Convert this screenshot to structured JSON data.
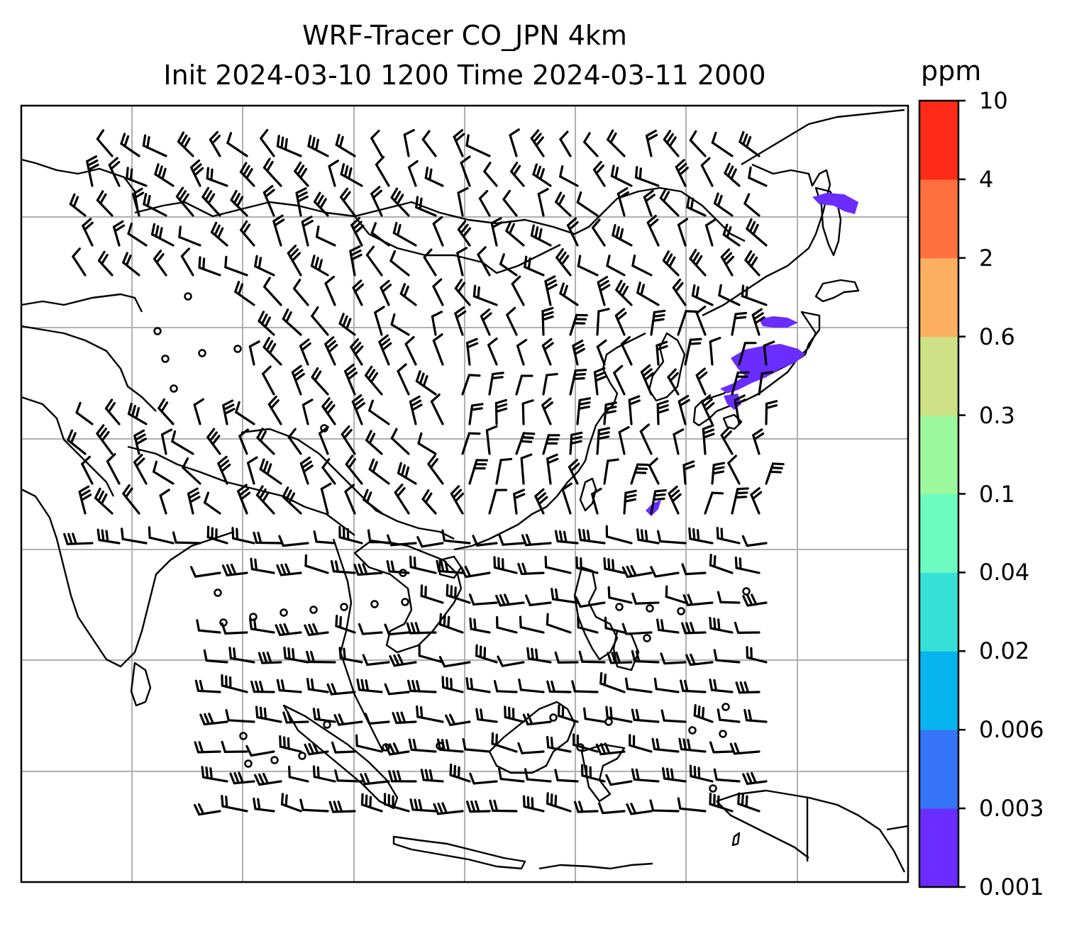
{
  "title_line1": "WRF-Tracer CO_JPN 4km",
  "title_line2": "Init 2024-03-10 1200 Time 2024-03-11 2000",
  "colorbar": {
    "unit": "ppm",
    "levels": [
      {
        "label": "0.001",
        "color": "#6a2cff"
      },
      {
        "label": "0.003",
        "color": "#3574f6"
      },
      {
        "label": "0.006",
        "color": "#08b4ee"
      },
      {
        "label": "0.02",
        "color": "#36e0d6"
      },
      {
        "label": "0.04",
        "color": "#6cfcbf"
      },
      {
        "label": "0.1",
        "color": "#9cf89c"
      },
      {
        "label": "0.3",
        "color": "#cfe186"
      },
      {
        "label": "0.6",
        "color": "#fcb060"
      },
      {
        "label": "2",
        "color": "#ff7040"
      },
      {
        "label": "4",
        "color": "#ff2a18"
      },
      {
        "label": "10",
        "color": ""
      }
    ]
  },
  "plume_color": "#6a2cff",
  "coast_color": "#000000",
  "grid_color": "#b0b0b0"
}
